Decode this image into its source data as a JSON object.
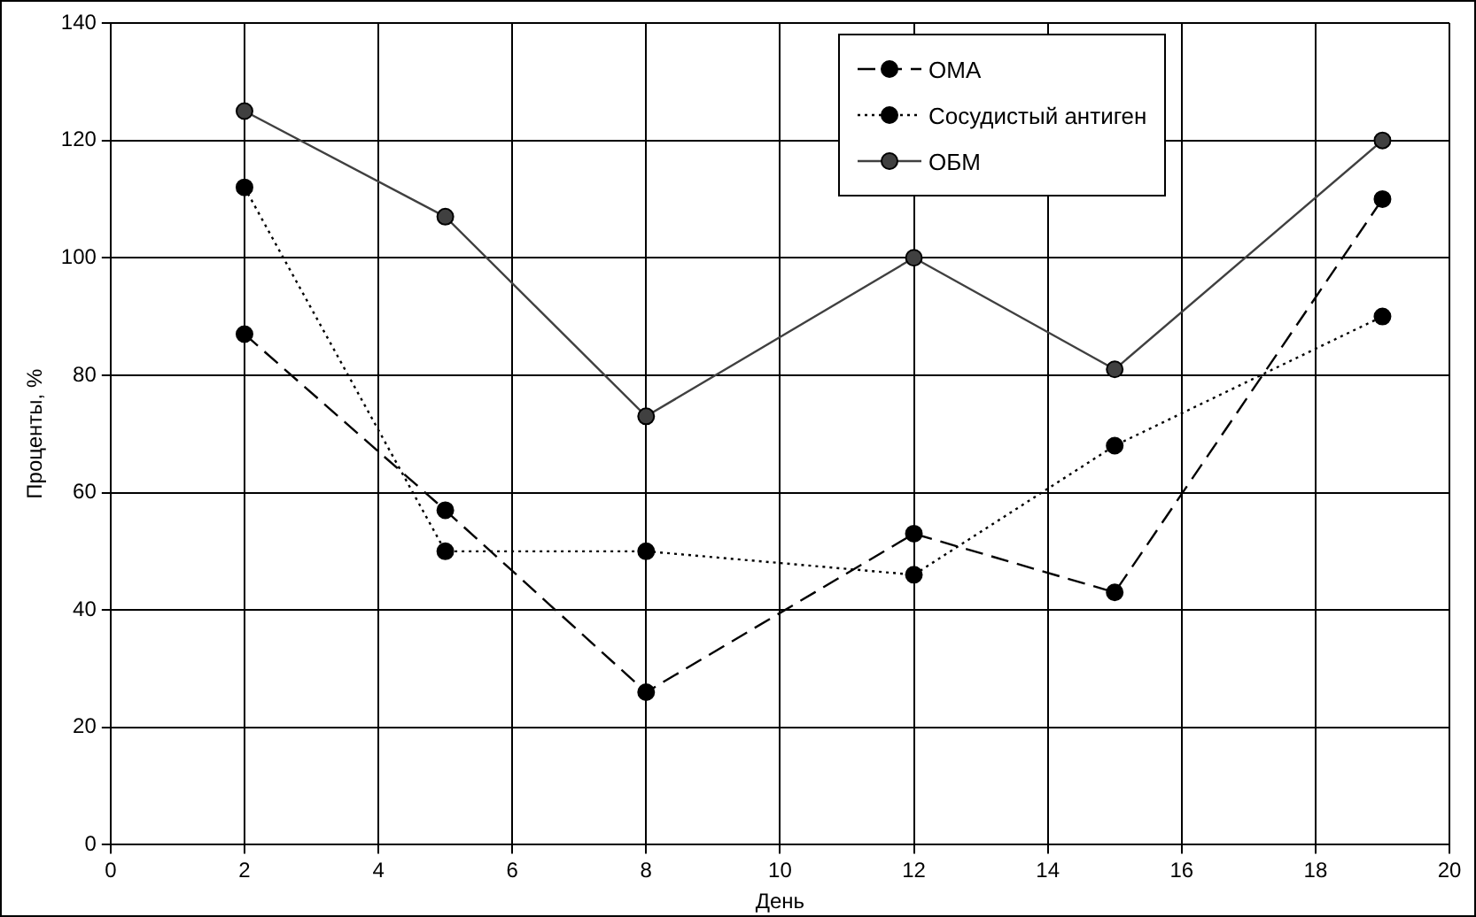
{
  "chart_data": {
    "type": "line",
    "xlabel": "День",
    "ylabel": "Проценты, %",
    "xlim": [
      0,
      20
    ],
    "xticks": [
      0,
      2,
      4,
      6,
      8,
      10,
      12,
      14,
      16,
      18,
      20
    ],
    "ylim": [
      0,
      140
    ],
    "yticks": [
      0,
      20,
      40,
      60,
      80,
      100,
      120,
      140
    ],
    "grid": true,
    "legend": "top right",
    "marker": "circle",
    "x": [
      2,
      5,
      8,
      12,
      15,
      19
    ],
    "series": [
      {
        "name": "ОМА",
        "color": "#000000",
        "line_style": "dashed",
        "values": [
          87,
          57,
          26,
          53,
          43,
          110
        ]
      },
      {
        "name": "Сосудистый антиген",
        "color": "#000000",
        "line_style": "dotted",
        "values": [
          112,
          50,
          50,
          46,
          68,
          90
        ]
      },
      {
        "name": "ОБМ",
        "color": "#404040",
        "line_style": "solid",
        "values": [
          125,
          107,
          73,
          100,
          81,
          120
        ]
      }
    ]
  }
}
